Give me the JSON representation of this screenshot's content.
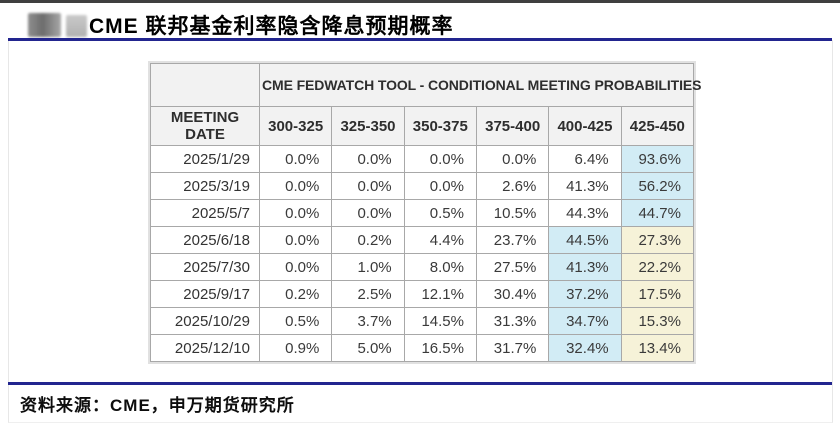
{
  "page": {
    "title": "CME 联邦基金利率隐含降息预期概率",
    "source": "资料来源：CME，申万期货研究所"
  },
  "colors": {
    "top_rule": "#3f3f3f",
    "accent_rule": "#22258f",
    "header_bg": "#f2f2f2",
    "cell_border": "#a8a8a8",
    "highlight_blue": "#d2ecf5",
    "highlight_yellow": "#f6f2d8"
  },
  "table": {
    "banner": "CME FEDWATCH TOOL - CONDITIONAL MEETING PROBABILITIES",
    "date_column": "MEETING DATE",
    "rate_columns": [
      "300-325",
      "325-350",
      "350-375",
      "375-400",
      "400-425",
      "425-450"
    ],
    "rows": [
      {
        "date": "2025/1/29",
        "values": [
          "0.0%",
          "0.0%",
          "0.0%",
          "0.0%",
          "6.4%",
          "93.6%"
        ],
        "highlights": [
          null,
          null,
          null,
          null,
          null,
          "blue"
        ]
      },
      {
        "date": "2025/3/19",
        "values": [
          "0.0%",
          "0.0%",
          "0.0%",
          "2.6%",
          "41.3%",
          "56.2%"
        ],
        "highlights": [
          null,
          null,
          null,
          null,
          null,
          "blue"
        ]
      },
      {
        "date": "2025/5/7",
        "values": [
          "0.0%",
          "0.0%",
          "0.5%",
          "10.5%",
          "44.3%",
          "44.7%"
        ],
        "highlights": [
          null,
          null,
          null,
          null,
          null,
          "blue"
        ]
      },
      {
        "date": "2025/6/18",
        "values": [
          "0.0%",
          "0.2%",
          "4.4%",
          "23.7%",
          "44.5%",
          "27.3%"
        ],
        "highlights": [
          null,
          null,
          null,
          null,
          "blue",
          "yellow"
        ]
      },
      {
        "date": "2025/7/30",
        "values": [
          "0.0%",
          "1.0%",
          "8.0%",
          "27.5%",
          "41.3%",
          "22.2%"
        ],
        "highlights": [
          null,
          null,
          null,
          null,
          "blue",
          "yellow"
        ]
      },
      {
        "date": "2025/9/17",
        "values": [
          "0.2%",
          "2.5%",
          "12.1%",
          "30.4%",
          "37.2%",
          "17.5%"
        ],
        "highlights": [
          null,
          null,
          null,
          null,
          "blue",
          "yellow"
        ]
      },
      {
        "date": "2025/10/29",
        "values": [
          "0.5%",
          "3.7%",
          "14.5%",
          "31.3%",
          "34.7%",
          "15.3%"
        ],
        "highlights": [
          null,
          null,
          null,
          null,
          "blue",
          "yellow"
        ]
      },
      {
        "date": "2025/12/10",
        "values": [
          "0.9%",
          "5.0%",
          "16.5%",
          "31.7%",
          "32.4%",
          "13.4%"
        ],
        "highlights": [
          null,
          null,
          null,
          null,
          "blue",
          "yellow"
        ]
      }
    ]
  }
}
